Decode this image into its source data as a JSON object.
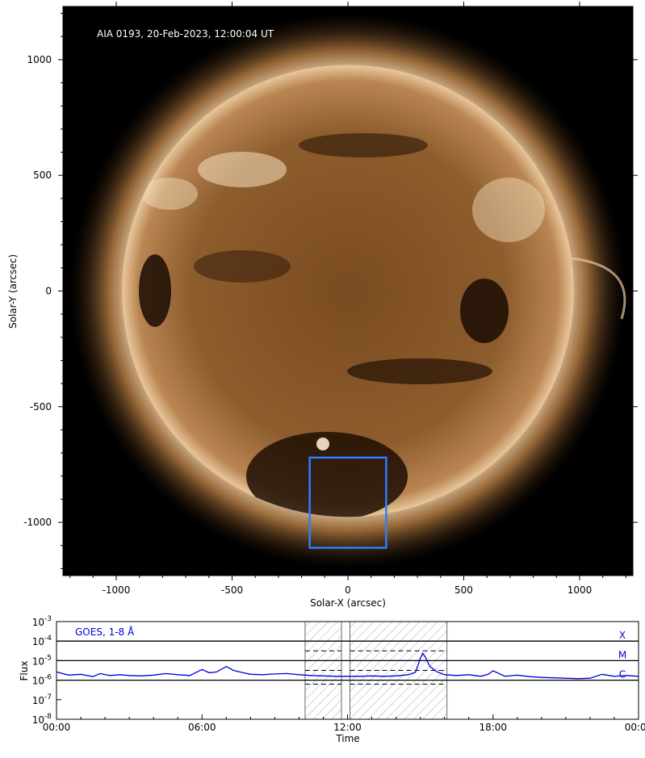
{
  "image_panel": {
    "title": "AIA 0193, 20-Feb-2023, 12:00:04 UT",
    "xlabel": "Solar-X (arcsec)",
    "ylabel": "Solar-Y (arcsec)",
    "colors": {
      "background": "#000000",
      "disk": "#8a5a2c",
      "limb": "#f2d6b0",
      "box": "#2a7fff"
    }
  },
  "chart_data": [
    {
      "type": "image",
      "title": "AIA 0193, 20-Feb-2023, 12:00:04 UT",
      "xlabel": "Solar-X (arcsec)",
      "ylabel": "Solar-Y (arcsec)",
      "xlim": [
        -1230,
        1230
      ],
      "ylim": [
        -1230,
        1230
      ],
      "xticks": [
        -1000,
        -500,
        0,
        500,
        1000
      ],
      "yticks": [
        -1000,
        -500,
        0,
        500,
        1000
      ],
      "xtick_labels": [
        "-1000",
        "-500",
        "0",
        "500",
        "1000"
      ],
      "ytick_labels": [
        "-1000",
        "-500",
        "0",
        "500",
        "1000"
      ],
      "solar_radius_arcsec": 975,
      "highlight_box": {
        "x0": -165,
        "x1": 165,
        "y0": -1110,
        "y1": -720
      }
    },
    {
      "type": "line",
      "legend": "GOES, 1-8 Å",
      "xlabel": "Time",
      "ylabel": "Flux",
      "yscale": "log",
      "x_unit": "hours",
      "xlim": [
        0,
        24
      ],
      "ylim_exp": [
        -8,
        -3
      ],
      "xticks": [
        0,
        6,
        12,
        18,
        24
      ],
      "xtick_labels": [
        "00:00",
        "06:00",
        "12:00",
        "18:00",
        "00:00"
      ],
      "ytick_exponents": [
        -8,
        -7,
        -6,
        -5,
        -4,
        -3
      ],
      "flare_class_lines": [
        {
          "label": "X",
          "exp": -4
        },
        {
          "label": "M",
          "exp": -5
        },
        {
          "label": "C",
          "exp": -6
        }
      ],
      "shaded_intervals": [
        [
          10.25,
          11.75
        ],
        [
          12.1,
          16.1
        ]
      ],
      "dashed_levels_exp": [
        -4.5,
        -5.5,
        -6.2
      ],
      "series": [
        {
          "line_color": "#0000dd",
          "x": [
            0,
            0.5,
            1.0,
            1.5,
            1.8,
            2.2,
            2.6,
            3.0,
            3.5,
            4.0,
            4.5,
            5.0,
            5.5,
            6.0,
            6.3,
            6.6,
            7.0,
            7.3,
            7.7,
            8.0,
            8.5,
            9.0,
            9.5,
            10.0,
            10.5,
            11.0,
            11.5,
            12.0,
            12.5,
            13.0,
            13.5,
            14.0,
            14.5,
            14.8,
            15.0,
            15.1,
            15.2,
            15.4,
            15.7,
            16.0,
            16.5,
            17.0,
            17.5,
            17.8,
            18.0,
            18.5,
            19.0,
            19.5,
            20.0,
            20.5,
            21.0,
            21.5,
            22.0,
            22.5,
            23.0,
            23.5,
            24.0
          ],
          "y_exp": [
            -5.58,
            -5.74,
            -5.7,
            -5.82,
            -5.66,
            -5.76,
            -5.72,
            -5.76,
            -5.78,
            -5.74,
            -5.66,
            -5.72,
            -5.76,
            -5.45,
            -5.62,
            -5.58,
            -5.3,
            -5.5,
            -5.62,
            -5.7,
            -5.72,
            -5.68,
            -5.66,
            -5.72,
            -5.76,
            -5.78,
            -5.8,
            -5.8,
            -5.8,
            -5.78,
            -5.8,
            -5.78,
            -5.72,
            -5.6,
            -4.9,
            -4.62,
            -4.8,
            -5.3,
            -5.58,
            -5.72,
            -5.76,
            -5.72,
            -5.8,
            -5.7,
            -5.52,
            -5.8,
            -5.74,
            -5.82,
            -5.86,
            -5.88,
            -5.9,
            -5.92,
            -5.9,
            -5.7,
            -5.8,
            -5.76,
            -5.8
          ]
        }
      ]
    }
  ]
}
